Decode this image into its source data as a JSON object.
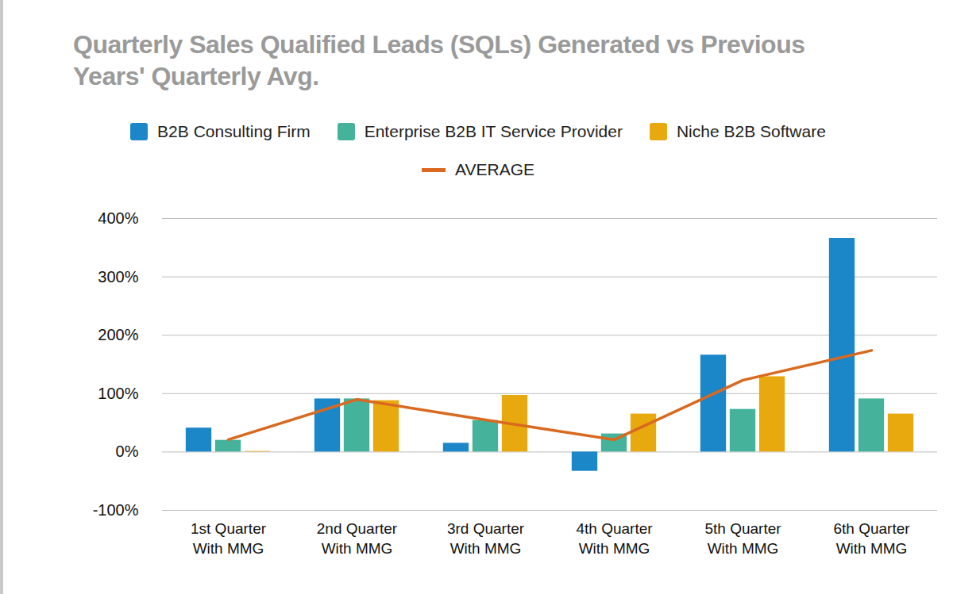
{
  "chart_data": {
    "type": "bar",
    "title": "Quarterly Sales Qualified Leads (SQLs) Generated vs Previous Years' Quarterly Avg.",
    "categories": [
      "1st Quarter\nWith MMG",
      "2nd Quarter\nWith MMG",
      "3rd Quarter\nWith MMG",
      "4th Quarter\nWith MMG",
      "5th Quarter\nWith MMG",
      "6th Quarter\nWith MMG"
    ],
    "series": [
      {
        "name": "B2B Consulting Firm",
        "color": "#1b87c9",
        "values": [
          41,
          91,
          15,
          -33,
          166,
          366
        ]
      },
      {
        "name": "Enterprise B2B IT Service Provider",
        "color": "#45b39c",
        "values": [
          20,
          91,
          54,
          31,
          73,
          91
        ]
      },
      {
        "name": "Niche B2B Software",
        "color": "#e8a90e",
        "values": [
          1,
          88,
          97,
          65,
          129,
          65
        ]
      },
      {
        "name": "AVERAGE",
        "type": "line",
        "color": "#d9691f",
        "values": [
          21,
          90,
          55,
          21,
          123,
          174
        ]
      }
    ],
    "ylim": [
      -100,
      400
    ],
    "yticks": [
      {
        "value": -100,
        "label": "-100%"
      },
      {
        "value": 0,
        "label": "0%"
      },
      {
        "value": 100,
        "label": "100%"
      },
      {
        "value": 200,
        "label": "200%"
      },
      {
        "value": 300,
        "label": "300%"
      },
      {
        "value": 400,
        "label": "400%"
      }
    ],
    "grid": true,
    "legend": "top"
  }
}
